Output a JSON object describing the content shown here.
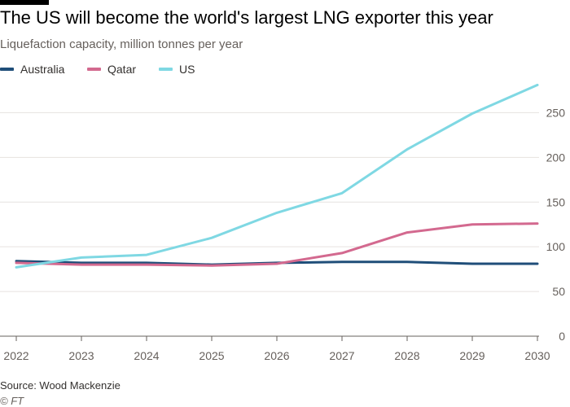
{
  "chart_data": {
    "type": "line",
    "title": "The US will become the world's largest LNG exporter this year",
    "subtitle": "Liquefaction capacity, million tonnes per year",
    "x": [
      2022,
      2023,
      2024,
      2025,
      2026,
      2027,
      2028,
      2029,
      2030
    ],
    "x_tick_labels": [
      "2022",
      "2023",
      "2024",
      "2025",
      "2026",
      "2027",
      "2028",
      "2029",
      "2030"
    ],
    "y_ticks": [
      0,
      50,
      100,
      150,
      200,
      250
    ],
    "ylim": [
      0,
      290
    ],
    "y_axis_side": "right",
    "grid": true,
    "legend_position": "top-left",
    "series": [
      {
        "name": "Australia",
        "color": "#1f4e79",
        "values": [
          84,
          82,
          82,
          80,
          82,
          83,
          83,
          81,
          81
        ]
      },
      {
        "name": "Qatar",
        "color": "#d3698f",
        "values": [
          82,
          80,
          80,
          79,
          81,
          93,
          116,
          125,
          126
        ]
      },
      {
        "name": "US",
        "color": "#7fd8e3",
        "values": [
          77,
          88,
          91,
          110,
          138,
          160,
          209,
          249,
          281
        ]
      }
    ],
    "source": "Source: Wood Mackenzie",
    "credit": "© FT"
  }
}
